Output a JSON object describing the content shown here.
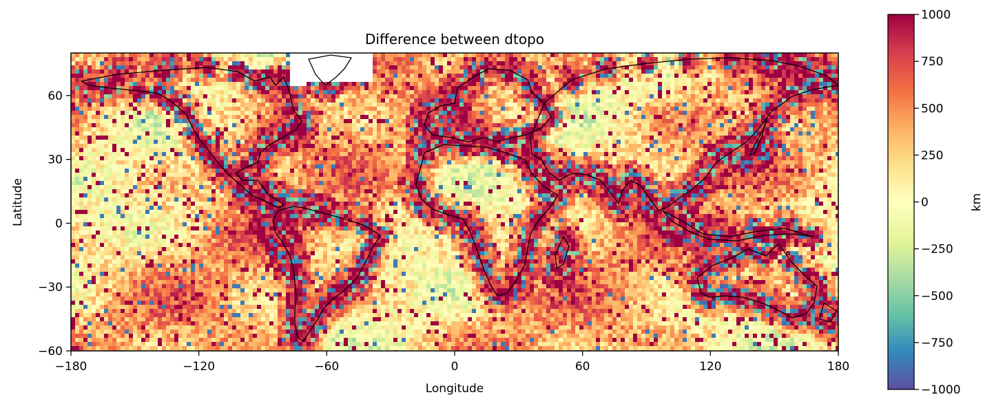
{
  "chart_data": {
    "type": "heatmap",
    "title": "Difference between dtopo",
    "xlabel": "Longitude",
    "ylabel": "Latitude",
    "xlim": [
      -180,
      180
    ],
    "ylim": [
      -60,
      80
    ],
    "xticks": [
      -180,
      -120,
      -60,
      0,
      60,
      120,
      180
    ],
    "xtick_labels": [
      "−180",
      "−120",
      "−60",
      "0",
      "60",
      "120",
      "180"
    ],
    "yticks": [
      -60,
      -30,
      0,
      30,
      60
    ],
    "ytick_labels": [
      "−60",
      "−30",
      "0",
      "30",
      "60"
    ],
    "colorbar": {
      "label": "km",
      "vmin": -1000,
      "vmax": 1000,
      "colormap": "Spectral_r",
      "ticks": [
        1000,
        750,
        500,
        250,
        0,
        -250,
        -500,
        -750,
        -1000
      ],
      "tick_labels": [
        "1000",
        "750",
        "500",
        "250",
        "0",
        "−250",
        "−500",
        "−750",
        "−1000"
      ],
      "colors": [
        "#5e4fa2",
        "#3288bd",
        "#66c2a5",
        "#abdda4",
        "#e6f598",
        "#ffffbf",
        "#fee08b",
        "#fdae61",
        "#f46d43",
        "#d53e4f",
        "#9e0142"
      ]
    },
    "grid": false,
    "overlay": "coastlines"
  }
}
